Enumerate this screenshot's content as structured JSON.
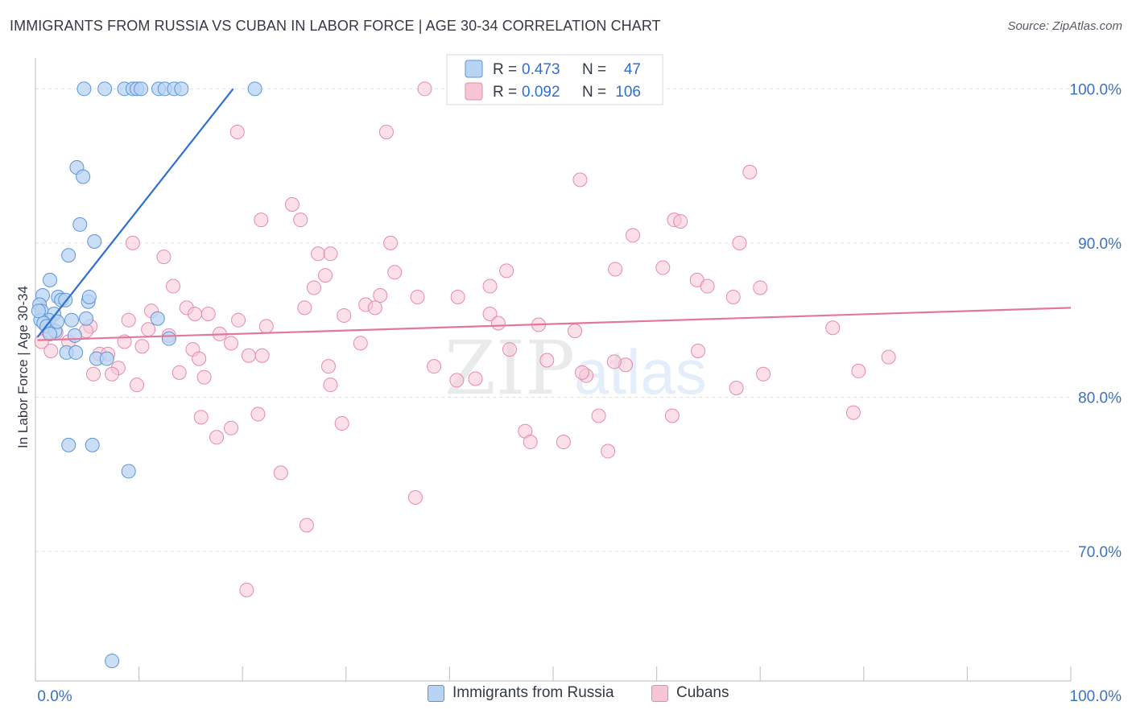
{
  "header": {
    "title": "IMMIGRANTS FROM RUSSIA VS CUBAN IN LABOR FORCE | AGE 30-34 CORRELATION CHART",
    "source": "Source: ZipAtlas.com"
  },
  "watermark": {
    "zip": "ZIP",
    "atlas": "atlas"
  },
  "legend_top": {
    "rows": [
      {
        "r_label": "R =",
        "r_value": "0.473",
        "n_label": "N =",
        "n_value": "47"
      },
      {
        "r_label": "R =",
        "r_value": "0.092",
        "n_label": "N =",
        "n_value": "106"
      }
    ]
  },
  "colors": {
    "russia_fill": "#b8d4f3",
    "russia_stroke": "#5b95d9",
    "russia_line": "#2f6fd0",
    "cuban_fill": "#f7c6d6",
    "cuban_stroke": "#e68aaa",
    "cuban_line": "#e2779e",
    "value_text": "#2f6fd0",
    "axis_text": "#3a72c4",
    "grid": "#dde1e6"
  },
  "chart_data": {
    "type": "scatter",
    "title": "IMMIGRANTS FROM RUSSIA VS CUBAN IN LABOR FORCE | AGE 30-34 CORRELATION CHART",
    "xlabel": "",
    "ylabel": "In Labor Force | Age 30-34",
    "xlim": [
      0,
      100
    ],
    "ylim": [
      61.6,
      102.0
    ],
    "x_tick_labels": [
      "0.0%",
      "100.0%"
    ],
    "y_ticks": [
      70,
      80,
      90,
      100
    ],
    "y_tick_labels": [
      "70.0%",
      "80.0%",
      "90.0%",
      "100.0%"
    ],
    "grid": true,
    "legend_position": "top-center",
    "series": [
      {
        "name": "Immigrants from Russia",
        "r": 0.473,
        "n": 47,
        "trend": {
          "x": [
            0.2,
            19.1
          ],
          "y": [
            83.9,
            100.0
          ]
        },
        "points": [
          [
            4.7,
            100.0
          ],
          [
            6.7,
            100.0
          ],
          [
            8.6,
            100.0
          ],
          [
            9.4,
            100.0
          ],
          [
            9.8,
            100.0
          ],
          [
            10.2,
            100.0
          ],
          [
            11.9,
            100.0
          ],
          [
            12.5,
            100.0
          ],
          [
            13.4,
            100.0
          ],
          [
            14.1,
            100.0
          ],
          [
            21.2,
            100.0
          ],
          [
            4.0,
            94.9
          ],
          [
            4.6,
            94.3
          ],
          [
            4.3,
            91.2
          ],
          [
            5.7,
            90.1
          ],
          [
            3.2,
            89.2
          ],
          [
            1.4,
            87.6
          ],
          [
            0.7,
            86.6
          ],
          [
            2.2,
            86.5
          ],
          [
            2.5,
            86.3
          ],
          [
            2.9,
            86.3
          ],
          [
            5.1,
            86.2
          ],
          [
            5.2,
            86.5
          ],
          [
            0.4,
            86.0
          ],
          [
            0.6,
            85.6
          ],
          [
            1.8,
            85.4
          ],
          [
            1.3,
            85.0
          ],
          [
            3.5,
            85.0
          ],
          [
            4.9,
            85.1
          ],
          [
            0.5,
            85.0
          ],
          [
            0.8,
            84.8
          ],
          [
            1.1,
            84.6
          ],
          [
            11.8,
            85.1
          ],
          [
            1.9,
            84.3
          ],
          [
            1.4,
            84.1
          ],
          [
            3.8,
            84.0
          ],
          [
            12.9,
            83.8
          ],
          [
            3.0,
            82.9
          ],
          [
            3.9,
            82.9
          ],
          [
            5.9,
            82.5
          ],
          [
            6.9,
            82.5
          ],
          [
            3.2,
            76.9
          ],
          [
            5.5,
            76.9
          ],
          [
            9.0,
            75.2
          ],
          [
            7.4,
            62.9
          ],
          [
            0.3,
            85.6
          ],
          [
            2.1,
            84.9
          ]
        ]
      },
      {
        "name": "Cubans",
        "r": 0.092,
        "n": 106,
        "trend": {
          "x": [
            0.2,
            100.0
          ],
          "y": [
            83.7,
            85.8
          ]
        },
        "points": [
          [
            37.6,
            100.0
          ],
          [
            33.9,
            97.2
          ],
          [
            19.5,
            97.2
          ],
          [
            69.0,
            94.6
          ],
          [
            52.6,
            94.1
          ],
          [
            24.8,
            92.5
          ],
          [
            21.8,
            91.5
          ],
          [
            25.6,
            91.5
          ],
          [
            61.7,
            91.5
          ],
          [
            62.3,
            91.4
          ],
          [
            57.7,
            90.5
          ],
          [
            9.4,
            90.0
          ],
          [
            34.3,
            90.0
          ],
          [
            68.0,
            90.0
          ],
          [
            27.3,
            89.3
          ],
          [
            28.5,
            89.3
          ],
          [
            12.4,
            89.1
          ],
          [
            56.0,
            88.3
          ],
          [
            45.5,
            88.2
          ],
          [
            60.6,
            88.4
          ],
          [
            34.7,
            88.1
          ],
          [
            28.0,
            87.9
          ],
          [
            63.9,
            87.6
          ],
          [
            13.3,
            87.2
          ],
          [
            26.9,
            87.1
          ],
          [
            43.9,
            87.2
          ],
          [
            64.9,
            87.2
          ],
          [
            70.0,
            87.1
          ],
          [
            36.9,
            86.5
          ],
          [
            33.3,
            86.6
          ],
          [
            40.8,
            86.5
          ],
          [
            67.4,
            86.5
          ],
          [
            31.9,
            86.0
          ],
          [
            32.8,
            85.8
          ],
          [
            26.0,
            85.8
          ],
          [
            14.6,
            85.8
          ],
          [
            11.2,
            85.6
          ],
          [
            15.4,
            85.4
          ],
          [
            29.8,
            85.3
          ],
          [
            16.7,
            85.4
          ],
          [
            43.9,
            85.4
          ],
          [
            19.6,
            85.0
          ],
          [
            9.0,
            85.0
          ],
          [
            44.7,
            84.8
          ],
          [
            48.6,
            84.7
          ],
          [
            5.3,
            84.6
          ],
          [
            77.0,
            84.5
          ],
          [
            10.9,
            84.4
          ],
          [
            52.1,
            84.3
          ],
          [
            4.9,
            84.3
          ],
          [
            1.3,
            84.2
          ],
          [
            2.0,
            84.2
          ],
          [
            17.8,
            84.1
          ],
          [
            12.9,
            84.0
          ],
          [
            8.6,
            83.6
          ],
          [
            0.6,
            83.6
          ],
          [
            3.2,
            83.6
          ],
          [
            18.9,
            83.5
          ],
          [
            10.3,
            83.3
          ],
          [
            31.4,
            83.5
          ],
          [
            15.2,
            83.1
          ],
          [
            45.8,
            83.1
          ],
          [
            64.0,
            83.0
          ],
          [
            1.5,
            83.0
          ],
          [
            6.2,
            82.8
          ],
          [
            7.0,
            82.8
          ],
          [
            20.6,
            82.7
          ],
          [
            21.9,
            82.7
          ],
          [
            15.8,
            82.5
          ],
          [
            82.4,
            82.6
          ],
          [
            49.4,
            82.4
          ],
          [
            57.0,
            82.1
          ],
          [
            8.0,
            81.9
          ],
          [
            13.9,
            81.6
          ],
          [
            28.3,
            82.0
          ],
          [
            5.6,
            81.5
          ],
          [
            7.4,
            81.5
          ],
          [
            16.3,
            81.3
          ],
          [
            42.5,
            81.2
          ],
          [
            53.2,
            81.4
          ],
          [
            70.3,
            81.5
          ],
          [
            79.5,
            81.7
          ],
          [
            40.7,
            81.1
          ],
          [
            9.8,
            80.8
          ],
          [
            28.5,
            80.8
          ],
          [
            67.7,
            80.6
          ],
          [
            21.5,
            78.9
          ],
          [
            16.0,
            78.7
          ],
          [
            54.4,
            78.8
          ],
          [
            61.5,
            78.8
          ],
          [
            29.6,
            78.3
          ],
          [
            79.0,
            79.0
          ],
          [
            47.3,
            77.8
          ],
          [
            18.9,
            78.0
          ],
          [
            17.5,
            77.4
          ],
          [
            47.8,
            77.1
          ],
          [
            51.0,
            77.1
          ],
          [
            55.3,
            76.5
          ],
          [
            23.7,
            75.1
          ],
          [
            36.7,
            73.5
          ],
          [
            26.2,
            71.7
          ],
          [
            20.4,
            67.5
          ],
          [
            52.8,
            81.6
          ],
          [
            38.5,
            82.0
          ],
          [
            55.9,
            82.3
          ],
          [
            22.3,
            84.6
          ]
        ]
      }
    ]
  }
}
